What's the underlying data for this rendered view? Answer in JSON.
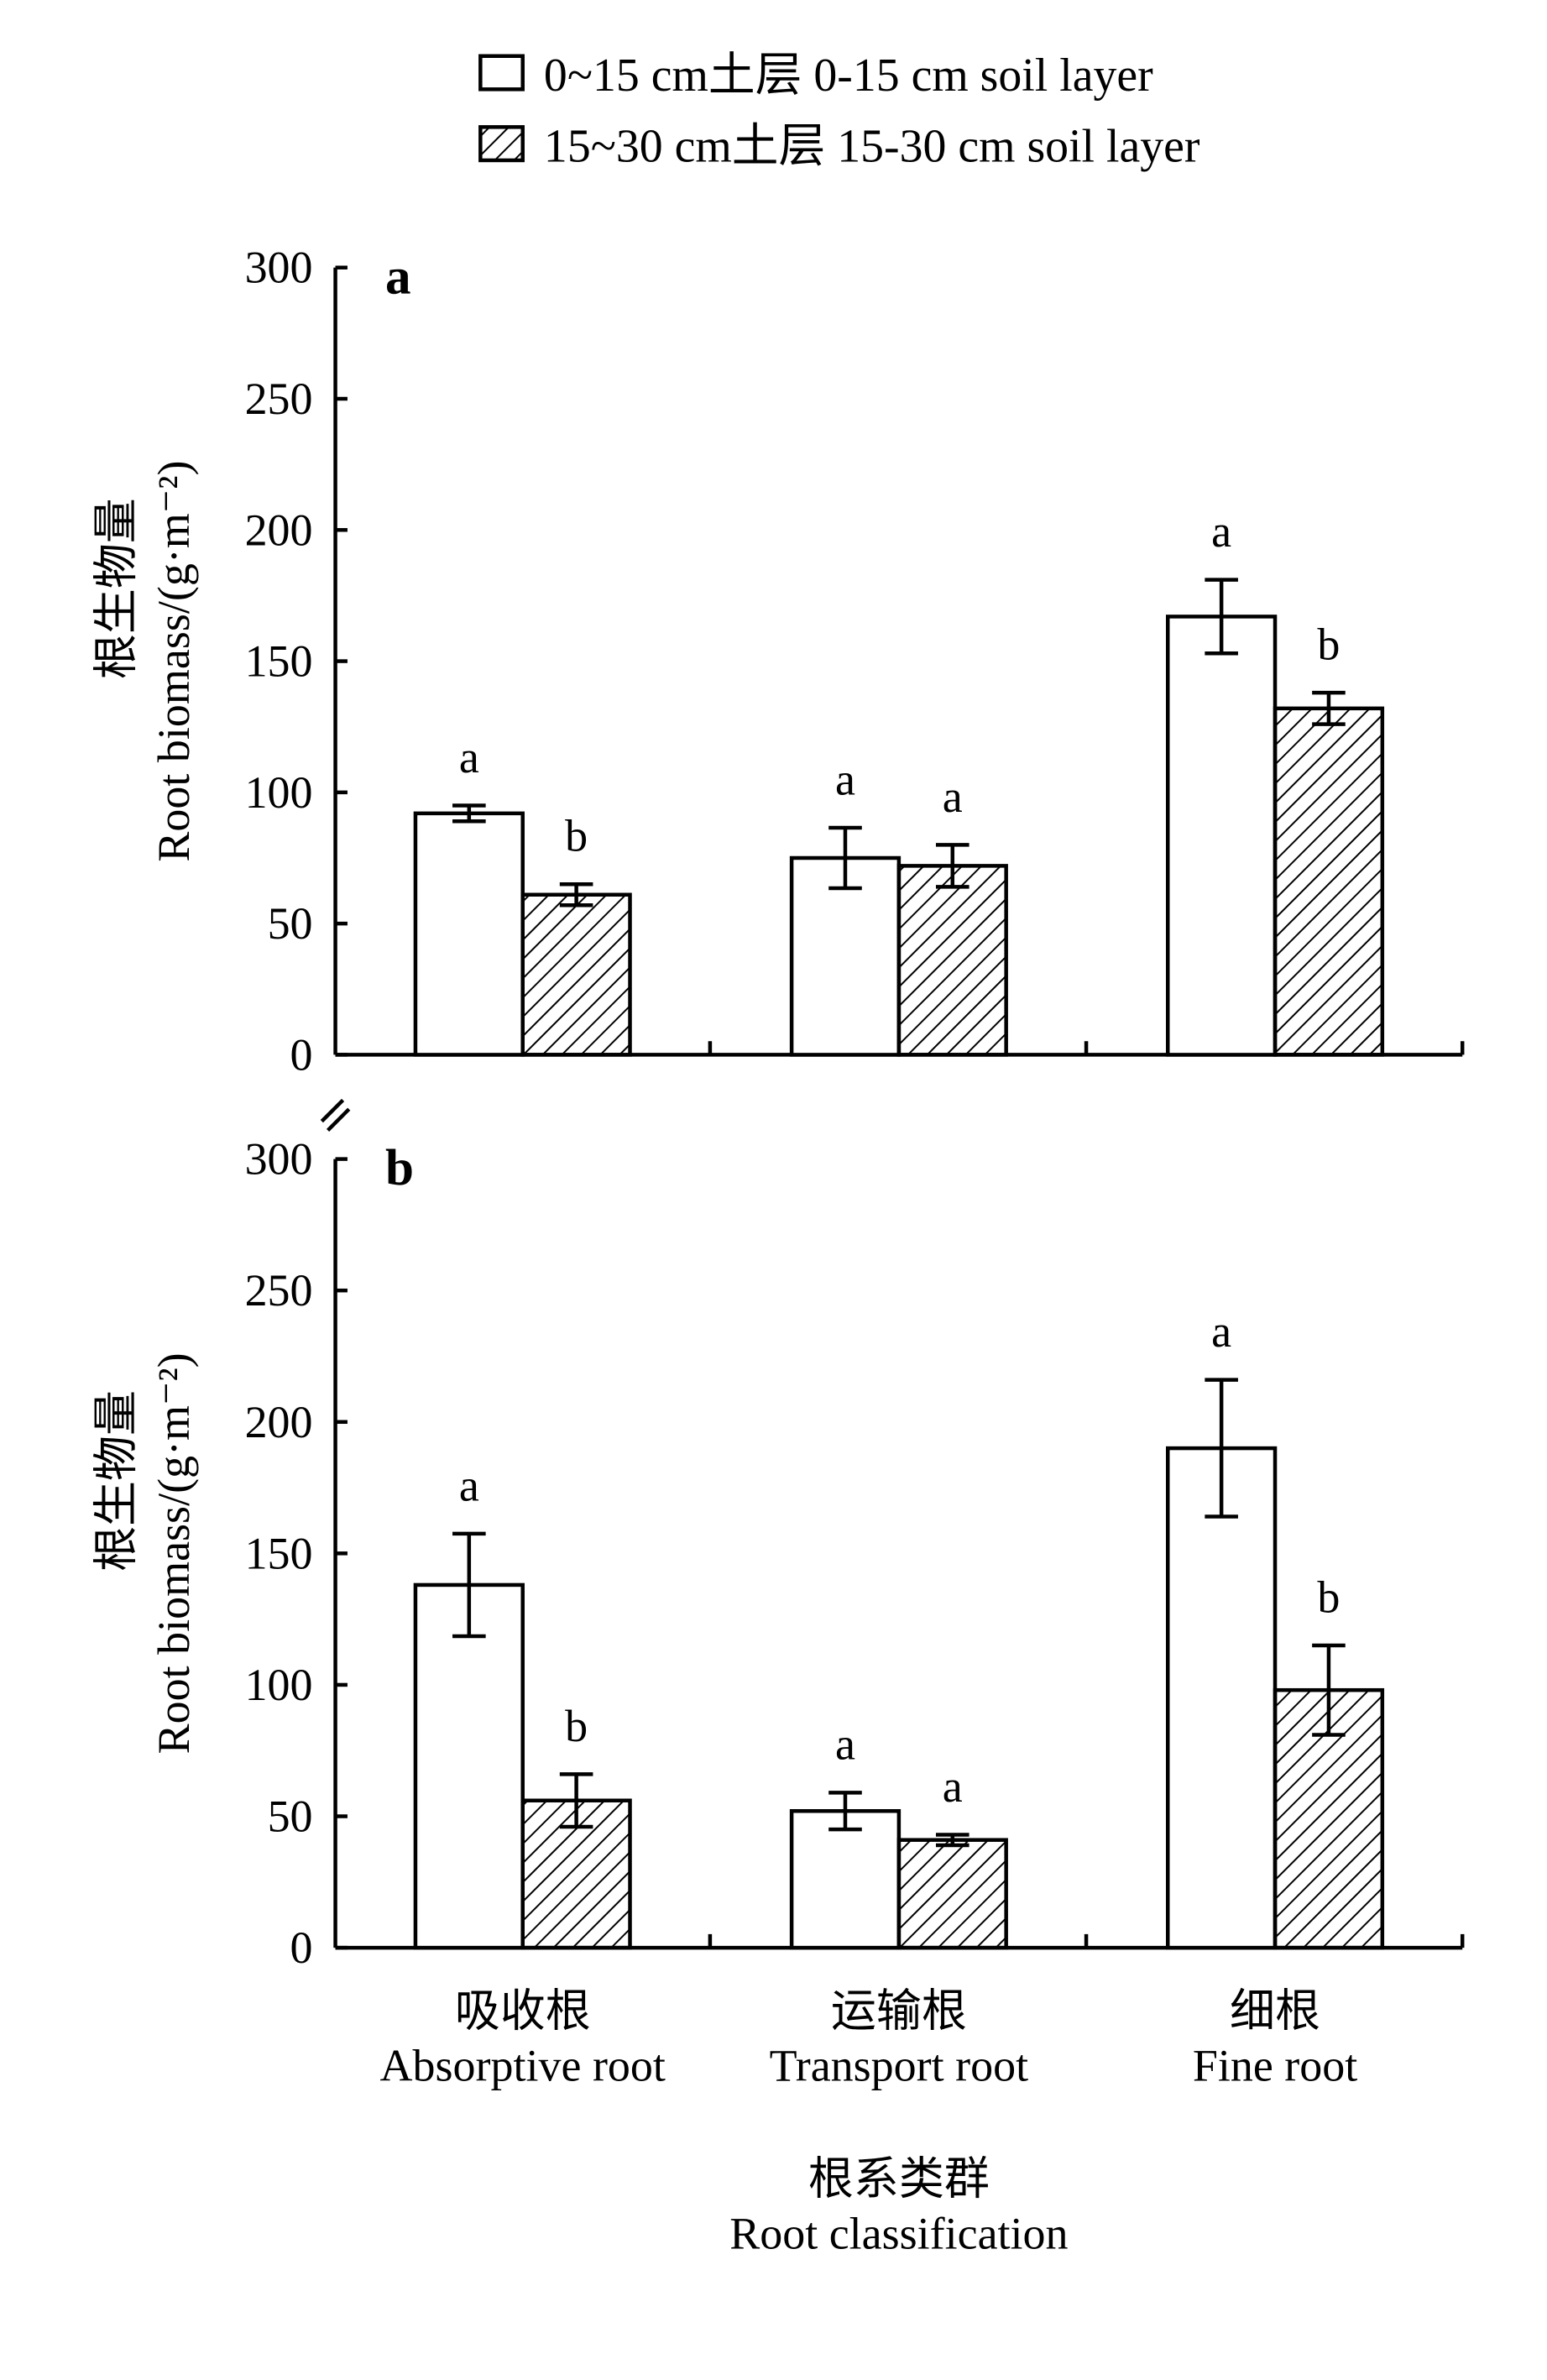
{
  "chart_data": [
    {
      "type": "bar",
      "panel_label": "a",
      "ylabel_cn": "根生物量",
      "ylabel_en": "Root biomass/(g·m⁻²)",
      "ylim": [
        0,
        300
      ],
      "yticks": [
        0,
        50,
        100,
        150,
        200,
        250,
        300
      ],
      "categories": [
        "Absorptive root",
        "Transport root",
        "Fine root"
      ],
      "series": [
        {
          "name": "0~15 cm",
          "values": [
            92,
            75,
            167
          ],
          "errors": [
            3,
            11.5,
            14
          ],
          "letters": [
            "a",
            "a",
            "a"
          ]
        },
        {
          "name": "15~30 cm",
          "values": [
            61,
            72,
            132
          ],
          "errors": [
            4,
            8,
            6
          ],
          "letters": [
            "b",
            "a",
            "b"
          ]
        }
      ]
    },
    {
      "type": "bar",
      "panel_label": "b",
      "ylabel_cn": "根生物量",
      "ylabel_en": "Root biomass/(g·m⁻²)",
      "ylim": [
        0,
        300
      ],
      "yticks": [
        0,
        50,
        100,
        150,
        200,
        250,
        300
      ],
      "categories": [
        "Absorptive root",
        "Transport root",
        "Fine root"
      ],
      "series": [
        {
          "name": "0~15 cm",
          "values": [
            138,
            52,
            190
          ],
          "errors": [
            19.5,
            7,
            26
          ],
          "letters": [
            "a",
            "a",
            "a"
          ]
        },
        {
          "name": "15~30 cm",
          "values": [
            56,
            41,
            98
          ],
          "errors": [
            10,
            2,
            17
          ],
          "letters": [
            "b",
            "a",
            "b"
          ]
        }
      ]
    }
  ],
  "legend": [
    "0~15 cm土层 0-15 cm soil layer",
    "15~30 cm土层 15-30 cm soil layer"
  ],
  "categories_cn": [
    "吸收根",
    "运输根",
    "细根"
  ],
  "categories_en": [
    "Absorptive root",
    "Transport root",
    "Fine root"
  ],
  "xlabel_cn": "根系类群",
  "xlabel_en": "Root classification"
}
